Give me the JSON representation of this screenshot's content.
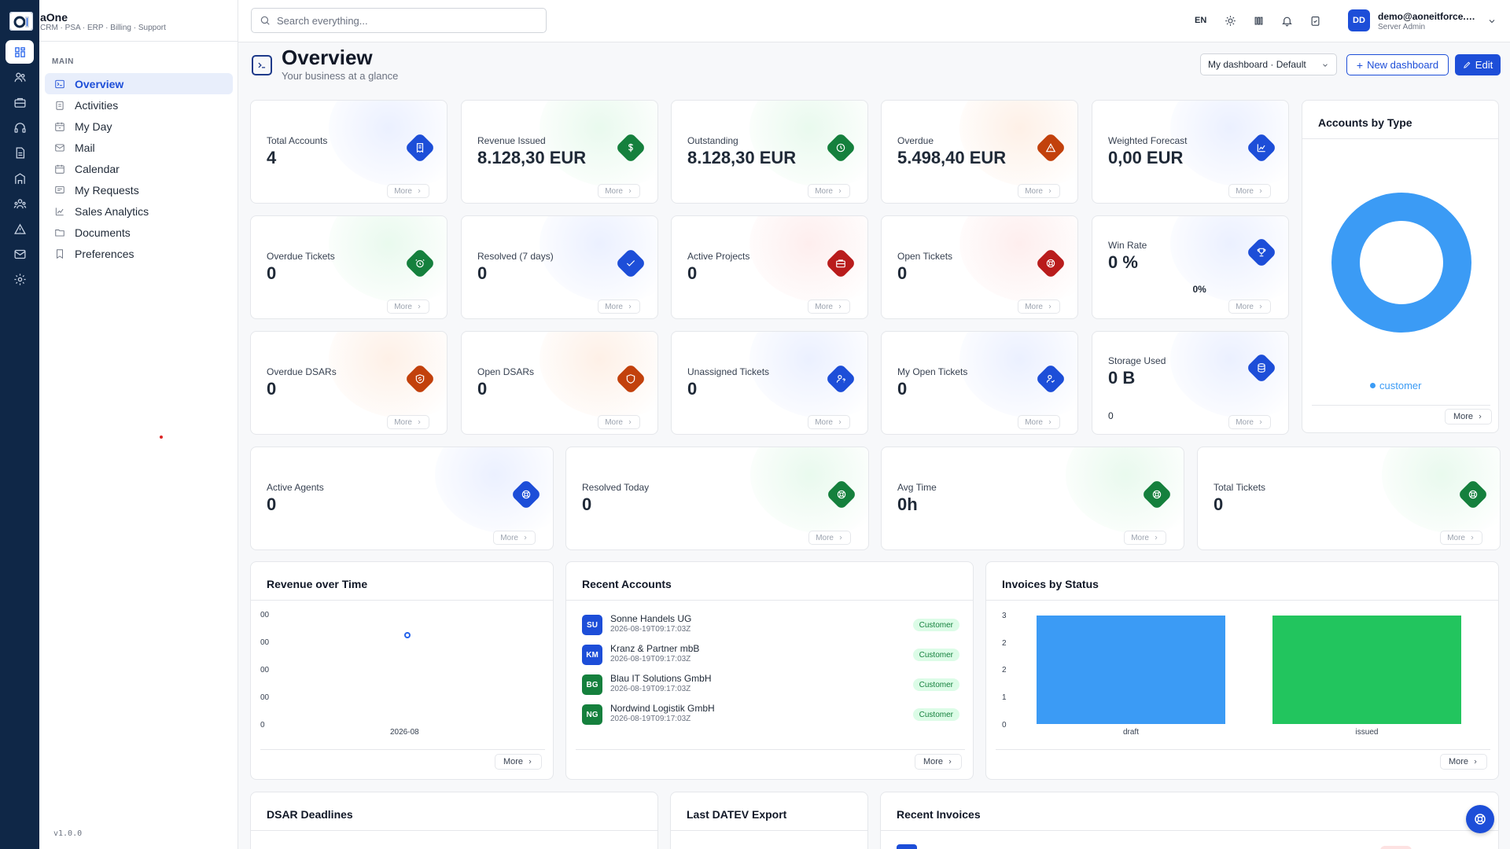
{
  "brand": {
    "name": "aOne",
    "subtitle": "CRM · PSA · ERP · Billing · Support"
  },
  "sidebar": {
    "section": "MAIN",
    "items": [
      {
        "label": "Overview",
        "icon": "terminal-icon",
        "active": true
      },
      {
        "label": "Activities",
        "icon": "clipboard-icon"
      },
      {
        "label": "My Day",
        "icon": "calendar-day-icon"
      },
      {
        "label": "Mail",
        "icon": "mail-icon"
      },
      {
        "label": "Calendar",
        "icon": "calendar-icon"
      },
      {
        "label": "My Requests",
        "icon": "message-icon"
      },
      {
        "label": "Sales Analytics",
        "icon": "chart-icon"
      },
      {
        "label": "Documents",
        "icon": "folder-icon"
      },
      {
        "label": "Preferences",
        "icon": "bookmark-icon"
      }
    ],
    "version": "v1.0.0"
  },
  "rail": [
    "dashboard-icon",
    "users-icon",
    "briefcase-icon",
    "headset-icon",
    "document-icon",
    "building-icon",
    "team-icon",
    "warning-icon",
    "mail-icon",
    "settings-icon"
  ],
  "topbar": {
    "search_placeholder": "Search everything...",
    "lang": "EN",
    "user": {
      "initials": "DD",
      "name": "demo@aoneitforce.com",
      "role": "Server Admin"
    }
  },
  "header": {
    "title": "Overview",
    "subtitle": "Your business at a glance",
    "dashboard_select": "My dashboard · Default",
    "new_dashboard": "New dashboard",
    "edit": "Edit"
  },
  "more_label": "More",
  "kpis": [
    {
      "label": "Total Accounts",
      "value": "4",
      "color": "#1d4ed8",
      "glow": "#dbe4ff",
      "icon": "receipt-icon"
    },
    {
      "label": "Revenue Issued",
      "value": "8.128,30 EUR",
      "color": "#15803d",
      "glow": "#d7f5e0",
      "icon": "dollar-icon"
    },
    {
      "label": "Outstanding",
      "value": "8.128,30 EUR",
      "color": "#15803d",
      "glow": "#d7f5e0",
      "icon": "clock-icon"
    },
    {
      "label": "Overdue",
      "value": "5.498,40 EUR",
      "color": "#c2410c",
      "glow": "#fde4d3",
      "icon": "warning-icon"
    },
    {
      "label": "Weighted Forecast",
      "value": "0,00 EUR",
      "color": "#1d4ed8",
      "glow": "#dbe4ff",
      "icon": "chart-icon"
    },
    {
      "label": "Overdue Tickets",
      "value": "0",
      "color": "#15803d",
      "glow": "#d7f5e0",
      "icon": "alarm-icon"
    },
    {
      "label": "Resolved (7 days)",
      "value": "0",
      "color": "#1d4ed8",
      "glow": "#dbe4ff",
      "icon": "check-icon"
    },
    {
      "label": "Active Projects",
      "value": "0",
      "color": "#b91c1c",
      "glow": "#fde0e0",
      "icon": "briefcase-icon"
    },
    {
      "label": "Open Tickets",
      "value": "0",
      "color": "#b91c1c",
      "glow": "#fde0e0",
      "icon": "lifebuoy-icon"
    },
    {
      "label": "Win Rate",
      "value": "0 %",
      "color": "#1d4ed8",
      "glow": "#dbe4ff",
      "icon": "trophy-icon",
      "extra": "0%"
    },
    {
      "label": "Overdue DSARs",
      "value": "0",
      "color": "#c2410c",
      "glow": "#fde4d3",
      "icon": "shield-refresh-icon"
    },
    {
      "label": "Open DSARs",
      "value": "0",
      "color": "#c2410c",
      "glow": "#fde4d3",
      "icon": "shield-icon"
    },
    {
      "label": "Unassigned Tickets",
      "value": "0",
      "color": "#1d4ed8",
      "glow": "#dbe4ff",
      "icon": "user-question-icon"
    },
    {
      "label": "My Open Tickets",
      "value": "0",
      "color": "#1d4ed8",
      "glow": "#dbe4ff",
      "icon": "user-check-icon"
    },
    {
      "label": "Storage Used",
      "value": "0 B",
      "color": "#1d4ed8",
      "glow": "#dbe4ff",
      "icon": "database-icon",
      "extra": "0"
    },
    {
      "label": "Active Agents",
      "value": "0",
      "color": "#1d4ed8",
      "glow": "#dbe4ff",
      "icon": "lifebuoy-icon"
    },
    {
      "label": "Resolved Today",
      "value": "0",
      "color": "#15803d",
      "glow": "#d7f5e0",
      "icon": "lifebuoy-icon"
    },
    {
      "label": "Avg Time",
      "value": "0h",
      "color": "#15803d",
      "glow": "#d7f5e0",
      "icon": "lifebuoy-icon"
    },
    {
      "label": "Total Tickets",
      "value": "0",
      "color": "#15803d",
      "glow": "#d7f5e0",
      "icon": "lifebuoy-icon"
    }
  ],
  "accounts_by_type": {
    "title": "Accounts by Type",
    "legend": "customer",
    "color": "#3b9bf5"
  },
  "revenue_over_time": {
    "title": "Revenue over Time",
    "y_ticks": [
      "00",
      "00",
      "00",
      "00",
      "0"
    ],
    "x_ticks": [
      "2026-08"
    ]
  },
  "recent_accounts": {
    "title": "Recent Accounts",
    "rows": [
      {
        "initials": "SU",
        "name": "Sonne Handels UG",
        "date": "2026-08-19T09:17:03Z",
        "tag": "Customer",
        "color": "#1d4ed8"
      },
      {
        "initials": "KM",
        "name": "Kranz & Partner mbB",
        "date": "2026-08-19T09:17:03Z",
        "tag": "Customer",
        "color": "#1d4ed8"
      },
      {
        "initials": "BG",
        "name": "Blau IT Solutions GmbH",
        "date": "2026-08-19T09:17:03Z",
        "tag": "Customer",
        "color": "#15803d"
      },
      {
        "initials": "NG",
        "name": "Nordwind Logistik GmbH",
        "date": "2026-08-19T09:17:03Z",
        "tag": "Customer",
        "color": "#15803d"
      }
    ]
  },
  "chart_data": [
    {
      "type": "pie",
      "title": "Accounts by Type",
      "categories": [
        "customer"
      ],
      "values": [
        4
      ],
      "donut": true,
      "legend": "bottom",
      "colors": [
        "#3b9bf5"
      ]
    },
    {
      "type": "scatter",
      "title": "Revenue over Time",
      "x": [
        "2026-08"
      ],
      "y_tick_labels": [
        "00",
        "00",
        "00",
        "00",
        "0"
      ],
      "points": [
        {
          "x": "2026-08",
          "position": "upper"
        }
      ]
    },
    {
      "type": "bar",
      "title": "Invoices by Status",
      "categories": [
        "draft",
        "issued"
      ],
      "values": [
        3,
        3
      ],
      "colors": [
        "#3b9bf5",
        "#22c55e"
      ],
      "y_tick_labels": [
        "3",
        "2",
        "2",
        "1",
        "0"
      ],
      "ylim": [
        0,
        3
      ]
    }
  ],
  "bottom_panels": [
    "DSAR Deadlines",
    "Last DATEV Export",
    "Recent Invoices"
  ]
}
